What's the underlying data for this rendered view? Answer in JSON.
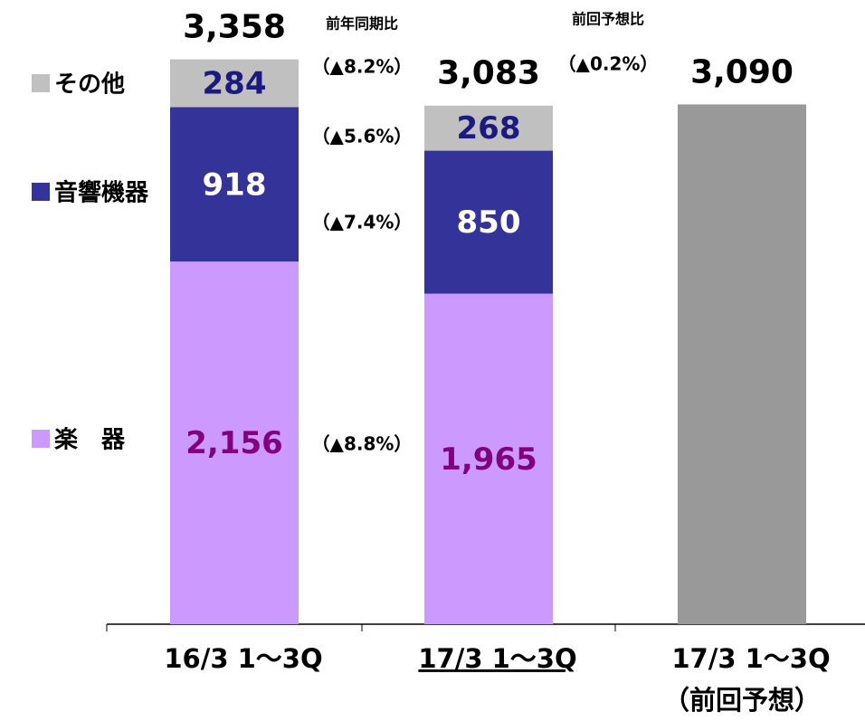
{
  "chart_data": {
    "type": "stacked_bar",
    "categories": [
      "16/3 1～3Q",
      "17/3 1～3Q",
      "17/3 1～3Q"
    ],
    "category_notes": [
      null,
      null,
      "（前回予想）"
    ],
    "underlined_category": 1,
    "series": [
      {
        "name": "楽　器",
        "color": "#cc99ff",
        "label_color": "#800080",
        "values": [
          2156,
          1965,
          null
        ],
        "value_labels": [
          "2,156",
          "1,965",
          null
        ]
      },
      {
        "name": "音響機器",
        "color": "#333399",
        "label_color": "#ffffff",
        "values": [
          918,
          850,
          null
        ]
      },
      {
        "name": "その他",
        "color": "#c0c0c0",
        "label_color": "#1a1a80",
        "values": [
          284,
          268,
          null
        ]
      },
      {
        "color": "#999999",
        "values": [
          null,
          null,
          3090
        ]
      }
    ],
    "totals": [
      3358,
      3083,
      3090
    ],
    "total_labels": [
      "3,358",
      "3,083",
      "3,090"
    ],
    "yoy_title": "前年同期比",
    "yoy_labels": [
      "（▲8.8%）",
      "（▲7.4%）",
      "（▲5.6%）",
      "（▲8.2%）"
    ],
    "forecast_title": "前回予想比",
    "forecast_label": "（▲0.2%）",
    "ylim": [
      0,
      3700
    ]
  }
}
